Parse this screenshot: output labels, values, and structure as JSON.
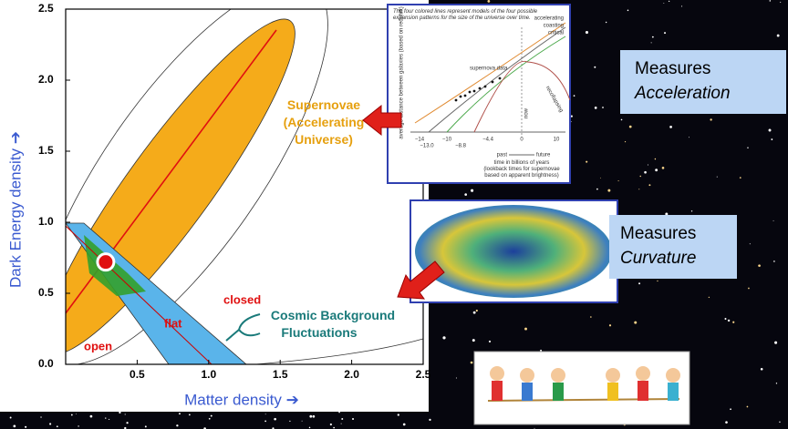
{
  "chart_data": {
    "type": "scatter",
    "x_label": "Matter density ➔",
    "y_label": "Dark Energy density ➔",
    "x": [
      0.28
    ],
    "values": [
      0.72
    ],
    "xlim": [
      0,
      2.5
    ],
    "ylim": [
      0,
      2.5
    ],
    "xticks": [
      0.5,
      {
        "value": 1,
        "label": "1.0"
      },
      1.5,
      {
        "value": 2,
        "label": "2.0"
      },
      2.5
    ],
    "yticks": [
      {
        "value": 0,
        "label": "0.0"
      },
      0.5,
      {
        "value": 1,
        "label": "1.0"
      },
      1.5,
      {
        "value": 2,
        "label": "2.0"
      },
      2.5
    ],
    "annotations": {
      "supernovae": [
        "Supernovae",
        "(Accelerating",
        "Universe)"
      ],
      "closed": "closed",
      "flat": "flat",
      "open": "open",
      "cmb": [
        "Cosmic Background",
        "Fluctuations"
      ]
    }
  },
  "inset": {
    "caption": [
      "The four colored lines represent models of the four possible",
      "expansion patterns for the size of the universe over time."
    ],
    "y_label": "average distance between galaxies (based on redshift)",
    "curves": [
      "accelerating",
      "coasting",
      "critical",
      "recollapsing"
    ],
    "supernova": "supernova data",
    "now": "now",
    "ticks_top": [
      "−14",
      "−10",
      "−4.4",
      "0",
      "10"
    ],
    "ticks_bottom": [
      "−13.0",
      "−8.8"
    ],
    "past": "past",
    "future": "future",
    "x_label": [
      "time in billions of years",
      "(lookback times for supernovae",
      "based on apparent brightness)"
    ]
  },
  "callouts": [
    {
      "line1": "Measures",
      "line2": "Acceleration"
    },
    {
      "line1": "Measures",
      "line2": "Curvature"
    }
  ]
}
